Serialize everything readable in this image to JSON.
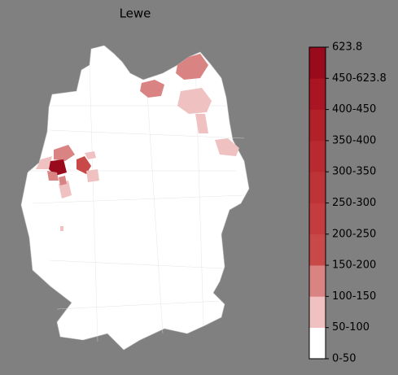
{
  "title": "Lewe",
  "legend": {
    "labels": [
      "0-50",
      "50-100",
      "100-150",
      "150-200",
      "200-250",
      "250-300",
      "300-350",
      "350-400",
      "400-450",
      "450-623.8",
      "623.8"
    ],
    "colors": [
      "#ffffff",
      "#efc1c1",
      "#da8383",
      "#c94848",
      "#c43c3e",
      "#be3336",
      "#b82a2f",
      "#b22128",
      "#aa1523",
      "#990a1c"
    ]
  }
}
